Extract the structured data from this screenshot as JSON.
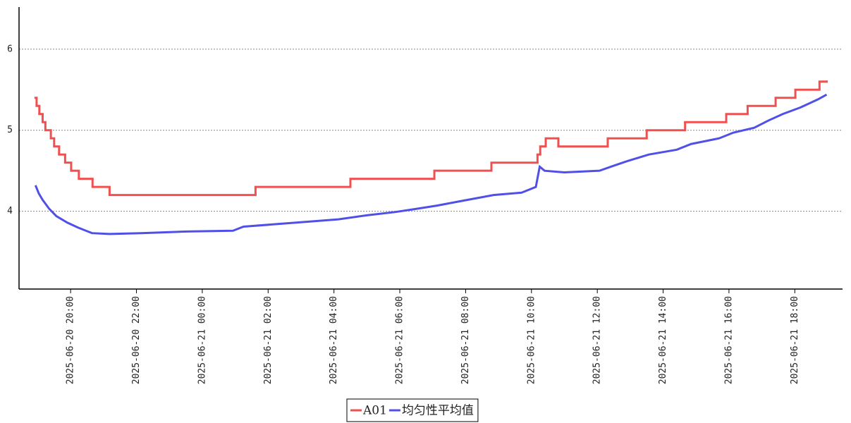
{
  "chart_data": {
    "type": "line",
    "xlim": [
      "2025-06-20 18:26",
      "2025-06-21 19:27"
    ],
    "xticks": [
      "2025-06-20 20:00",
      "2025-06-20 22:00",
      "2025-06-21 00:00",
      "2025-06-21 02:00",
      "2025-06-21 04:00",
      "2025-06-21 06:00",
      "2025-06-21 08:00",
      "2025-06-21 10:00",
      "2025-06-21 12:00",
      "2025-06-21 14:00",
      "2025-06-21 16:00",
      "2025-06-21 18:00"
    ],
    "ylim": [
      3.04,
      6.52
    ],
    "yticks": [
      4,
      5,
      6
    ],
    "grid": true,
    "legend": "bottom",
    "series": [
      {
        "name": "A01",
        "color": "#f05050",
        "step": "post",
        "x": [
          "2025-06-20 18:56",
          "2025-06-20 18:58",
          "2025-06-20 19:03",
          "2025-06-20 19:09",
          "2025-06-20 19:14",
          "2025-06-20 19:24",
          "2025-06-20 19:30",
          "2025-06-20 19:39",
          "2025-06-20 19:50",
          "2025-06-20 20:01",
          "2025-06-20 20:15",
          "2025-06-20 20:40",
          "2025-06-20 21:11",
          "2025-06-21 01:37",
          "2025-06-21 04:30",
          "2025-06-21 07:03",
          "2025-06-21 08:47",
          "2025-06-21 10:11",
          "2025-06-21 10:16",
          "2025-06-21 10:26",
          "2025-06-21 10:49",
          "2025-06-21 12:19",
          "2025-06-21 13:30",
          "2025-06-21 14:40",
          "2025-06-21 15:55",
          "2025-06-21 16:34",
          "2025-06-21 17:25",
          "2025-06-21 18:01",
          "2025-06-21 18:45",
          "2025-06-21 18:58"
        ],
        "values": [
          5.4,
          5.3,
          5.2,
          5.1,
          5.0,
          4.9,
          4.8,
          4.7,
          4.6,
          4.5,
          4.4,
          4.3,
          4.2,
          4.3,
          4.4,
          4.5,
          4.6,
          4.7,
          4.8,
          4.9,
          4.8,
          4.9,
          5.0,
          5.1,
          5.2,
          5.3,
          5.4,
          5.5,
          5.6,
          5.6
        ]
      },
      {
        "name": "均匀性平均值",
        "color": "#5050e8",
        "x": [
          "2025-06-20 18:56",
          "2025-06-20 19:02",
          "2025-06-20 19:09",
          "2025-06-20 19:21",
          "2025-06-20 19:34",
          "2025-06-20 19:54",
          "2025-06-20 20:13",
          "2025-06-20 20:39",
          "2025-06-20 21:11",
          "2025-06-20 22:08",
          "2025-06-20 23:32",
          "2025-06-21 00:56",
          "2025-06-21 01:15",
          "2025-06-21 02:13",
          "2025-06-21 02:51",
          "2025-06-21 04:08",
          "2025-06-21 05:00",
          "2025-06-21 05:51",
          "2025-06-21 06:30",
          "2025-06-21 07:08",
          "2025-06-21 07:47",
          "2025-06-21 08:51",
          "2025-06-21 09:42",
          "2025-06-21 10:08",
          "2025-06-21 10:15",
          "2025-06-21 10:24",
          "2025-06-21 11:00",
          "2025-06-21 12:04",
          "2025-06-21 12:29",
          "2025-06-21 12:55",
          "2025-06-21 13:34",
          "2025-06-21 14:25",
          "2025-06-21 14:51",
          "2025-06-21 15:42",
          "2025-06-21 16:08",
          "2025-06-21 16:46",
          "2025-06-21 17:12",
          "2025-06-21 17:38",
          "2025-06-21 18:10",
          "2025-06-21 18:42",
          "2025-06-21 18:58"
        ],
        "values": [
          4.32,
          4.22,
          4.14,
          4.03,
          3.94,
          3.86,
          3.8,
          3.73,
          3.72,
          3.73,
          3.75,
          3.76,
          3.81,
          3.84,
          3.86,
          3.9,
          3.95,
          3.99,
          4.03,
          4.07,
          4.12,
          4.2,
          4.23,
          4.3,
          4.55,
          4.5,
          4.48,
          4.5,
          4.56,
          4.62,
          4.7,
          4.76,
          4.83,
          4.9,
          4.97,
          5.03,
          5.12,
          5.2,
          5.28,
          5.38,
          5.44
        ]
      }
    ]
  }
}
